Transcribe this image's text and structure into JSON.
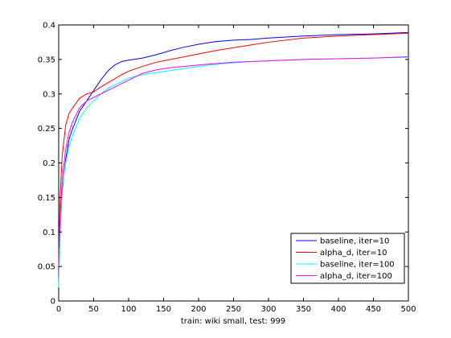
{
  "chart_data": {
    "type": "line",
    "title": "",
    "xlabel": "train: wiki small, test: 999",
    "ylabel": "",
    "xlim": [
      0,
      500
    ],
    "ylim": [
      0,
      0.4
    ],
    "xticks": [
      0,
      50,
      100,
      150,
      200,
      250,
      300,
      350,
      400,
      450,
      500
    ],
    "xtick_labels": [
      "0",
      "50",
      "100",
      "150",
      "200",
      "250",
      "300",
      "350",
      "400",
      "450",
      "500"
    ],
    "yticks": [
      0,
      0.05,
      0.1,
      0.15,
      0.2,
      0.25,
      0.3,
      0.35,
      0.4
    ],
    "ytick_labels": [
      "0",
      "0.05",
      "0.1",
      "0.15",
      "0.2",
      "0.25",
      "0.3",
      "0.35",
      "0.4"
    ],
    "grid": false,
    "legend_position": "bottom-right",
    "series": [
      {
        "name": "baseline, iter=10",
        "color": "#0000ff",
        "x": [
          0,
          2,
          5,
          10,
          15,
          20,
          30,
          40,
          50,
          60,
          70,
          80,
          90,
          100,
          120,
          140,
          160,
          180,
          200,
          225,
          250,
          275,
          300,
          350,
          400,
          450,
          500
        ],
        "y": [
          0.04,
          0.1,
          0.16,
          0.205,
          0.235,
          0.25,
          0.275,
          0.29,
          0.305,
          0.32,
          0.333,
          0.342,
          0.347,
          0.349,
          0.352,
          0.357,
          0.363,
          0.368,
          0.372,
          0.376,
          0.378,
          0.379,
          0.381,
          0.384,
          0.386,
          0.387,
          0.389
        ]
      },
      {
        "name": "alpha_d, iter=10",
        "color": "#ff0000",
        "x": [
          0,
          2,
          5,
          10,
          15,
          20,
          30,
          40,
          50,
          60,
          70,
          80,
          90,
          100,
          120,
          140,
          160,
          180,
          200,
          225,
          250,
          275,
          300,
          350,
          400,
          450,
          500
        ],
        "y": [
          0.06,
          0.15,
          0.21,
          0.255,
          0.272,
          0.28,
          0.294,
          0.3,
          0.303,
          0.31,
          0.316,
          0.322,
          0.328,
          0.333,
          0.34,
          0.346,
          0.35,
          0.354,
          0.358,
          0.363,
          0.367,
          0.371,
          0.375,
          0.381,
          0.384,
          0.386,
          0.388
        ]
      },
      {
        "name": "baseline, iter=100",
        "color": "#00ffff",
        "x": [
          0,
          2,
          5,
          10,
          15,
          20,
          30,
          40,
          50,
          60,
          70,
          80,
          90,
          100,
          120,
          140,
          160,
          180,
          200,
          225,
          250,
          275,
          300,
          350,
          400,
          450,
          500
        ],
        "y": [
          0.02,
          0.1,
          0.165,
          0.2,
          0.225,
          0.24,
          0.265,
          0.28,
          0.29,
          0.3,
          0.308,
          0.313,
          0.318,
          0.323,
          0.328,
          0.331,
          0.334,
          0.337,
          0.34,
          0.343,
          0.345,
          0.347,
          0.348,
          0.35,
          0.351,
          0.352,
          0.353
        ]
      },
      {
        "name": "alpha_d, iter=100",
        "color": "#ff00ff",
        "x": [
          0,
          2,
          5,
          10,
          15,
          20,
          30,
          40,
          50,
          60,
          70,
          80,
          90,
          100,
          120,
          140,
          160,
          180,
          200,
          225,
          250,
          275,
          300,
          350,
          400,
          450,
          500
        ],
        "y": [
          0.05,
          0.12,
          0.175,
          0.22,
          0.245,
          0.26,
          0.28,
          0.29,
          0.295,
          0.3,
          0.305,
          0.31,
          0.315,
          0.32,
          0.33,
          0.335,
          0.338,
          0.34,
          0.342,
          0.344,
          0.346,
          0.347,
          0.348,
          0.35,
          0.351,
          0.352,
          0.354
        ]
      }
    ]
  }
}
